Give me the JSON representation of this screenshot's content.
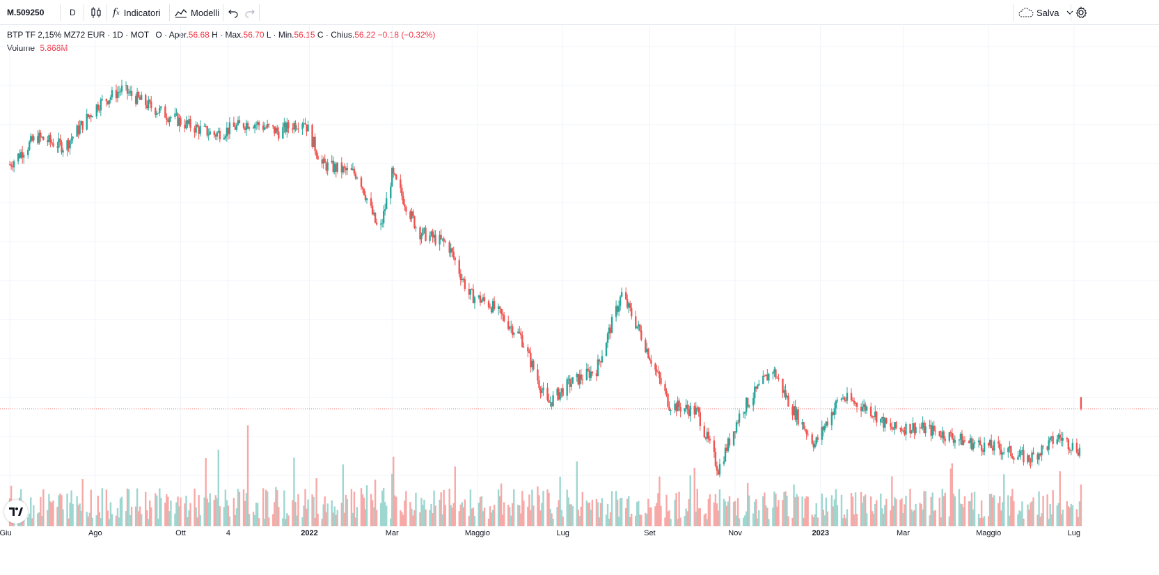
{
  "toolbar": {
    "symbol": "M.509250",
    "interval": "D",
    "indicators_label": "Indicatori",
    "templates_label": "Modelli",
    "save_label": "Salva"
  },
  "legend": {
    "title": "BTP TF 2,15% MZ72 EUR · 1D · MOT",
    "o_label": "O",
    "open_text": "Aper.",
    "open_val": "56.68",
    "h_label": "H",
    "high_text": "Max.",
    "high_val": "56.70",
    "l_label": "L",
    "low_text": "Min.",
    "low_val": "56.15",
    "c_label": "C",
    "close_text": "Chius.",
    "close_val": "56.22",
    "change": "−0.18 (−0.32%)",
    "volume_label": "Volume",
    "volume_val": "5.868M"
  },
  "colors": {
    "up": "#26a69a",
    "down": "#ef5350",
    "up_vol": "#9ed6d0",
    "down_vol": "#f7a9a7",
    "grid": "#f0f3fa"
  },
  "x_axis_labels": [
    "Giu",
    "Ago",
    "Ott",
    "4",
    "2022",
    "Mar",
    "Maggio",
    "Lug",
    "Set",
    "Nov",
    "2023",
    "Mar",
    "Maggio",
    "Lug"
  ],
  "chart_data": {
    "type": "candlestick",
    "title": "BTP TF 2,15% MZ72 EUR",
    "interval": "1D",
    "exchange": "MOT",
    "x_range": [
      "2021-06",
      "2023-07"
    ],
    "price_anchors": {
      "dates": [
        "2021-06-01",
        "2021-06-20",
        "2021-07-10",
        "2021-08-03",
        "2021-08-20",
        "2021-09-10",
        "2021-10-05",
        "2021-10-25",
        "2021-11-20",
        "2021-12-10",
        "2021-12-28",
        "2022-01-10",
        "2022-02-05",
        "2022-02-20",
        "2022-03-01",
        "2022-03-20",
        "2022-04-10",
        "2022-04-25",
        "2022-05-10",
        "2022-06-01",
        "2022-06-20",
        "2022-07-05",
        "2022-07-25",
        "2022-08-12",
        "2022-08-25",
        "2022-09-15",
        "2022-10-05",
        "2022-10-20",
        "2022-11-05",
        "2022-11-28",
        "2022-12-10",
        "2022-12-28",
        "2023-01-15",
        "2023-02-05",
        "2023-02-20",
        "2023-03-10",
        "2023-03-25",
        "2023-04-15",
        "2023-05-10",
        "2023-05-30",
        "2023-06-20",
        "2023-07-04"
      ],
      "close": [
        66.0,
        67.1,
        66.7,
        68.4,
        69.0,
        68.3,
        67.6,
        67.2,
        67.7,
        67.3,
        67.8,
        66.0,
        65.6,
        63.2,
        65.6,
        63.3,
        62.8,
        60.8,
        60.4,
        59.1,
        56.4,
        57.2,
        57.8,
        60.8,
        59.3,
        56.4,
        56.1,
        53.8,
        56.1,
        57.8,
        56.4,
        54.8,
        56.7,
        56.2,
        55.4,
        55.5,
        55.3,
        54.9,
        54.6,
        54.2,
        55.1,
        54.6
      ]
    },
    "volume_max": "high spikes around Oct 2021–Nov 2021 and Mar 2022",
    "last_volume": "5.868M",
    "last_close": 56.22
  }
}
